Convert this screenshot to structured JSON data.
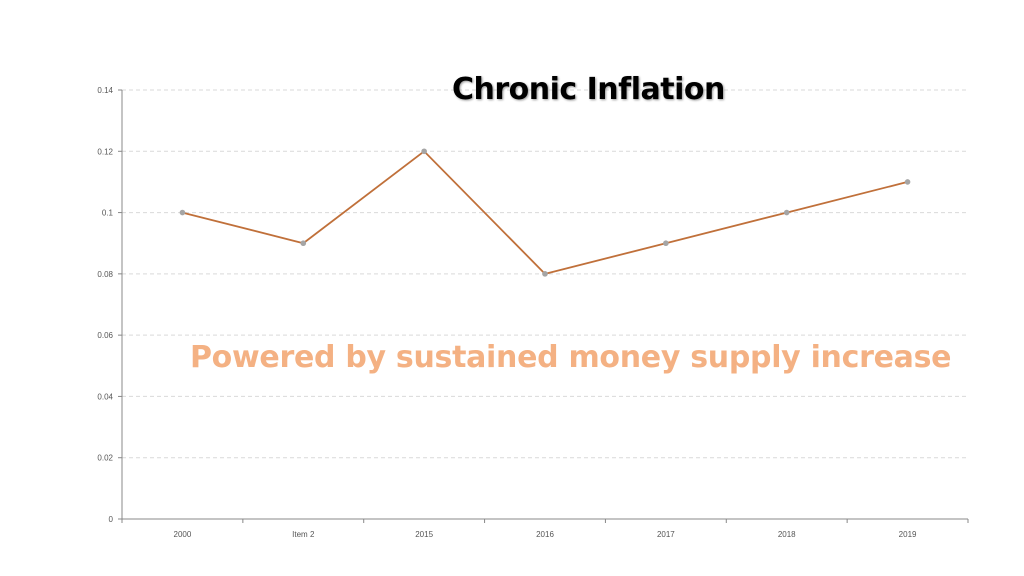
{
  "chart_data": {
    "type": "line",
    "title": "Chronic Inflation",
    "categories": [
      "2000",
      "Item 2",
      "2015",
      "2016",
      "2017",
      "2018",
      "2019"
    ],
    "values": [
      0.1,
      0.09,
      0.12,
      0.08,
      0.09,
      0.1,
      0.11
    ],
    "xlabel": "",
    "ylabel": "",
    "ylim": [
      0,
      0.14
    ],
    "yticks": [
      "0",
      "0.02",
      "0.04",
      "0.06",
      "0.08",
      "0.1",
      "0.12",
      "0.14"
    ],
    "grid": "horizontal dashed",
    "legend": "none",
    "line_color": "#c0703a",
    "marker_color": "#a5a5a5"
  },
  "annotation": "Powered by sustained money supply increase",
  "colors": {
    "annotation": "#f4b183",
    "title": "#000000"
  }
}
